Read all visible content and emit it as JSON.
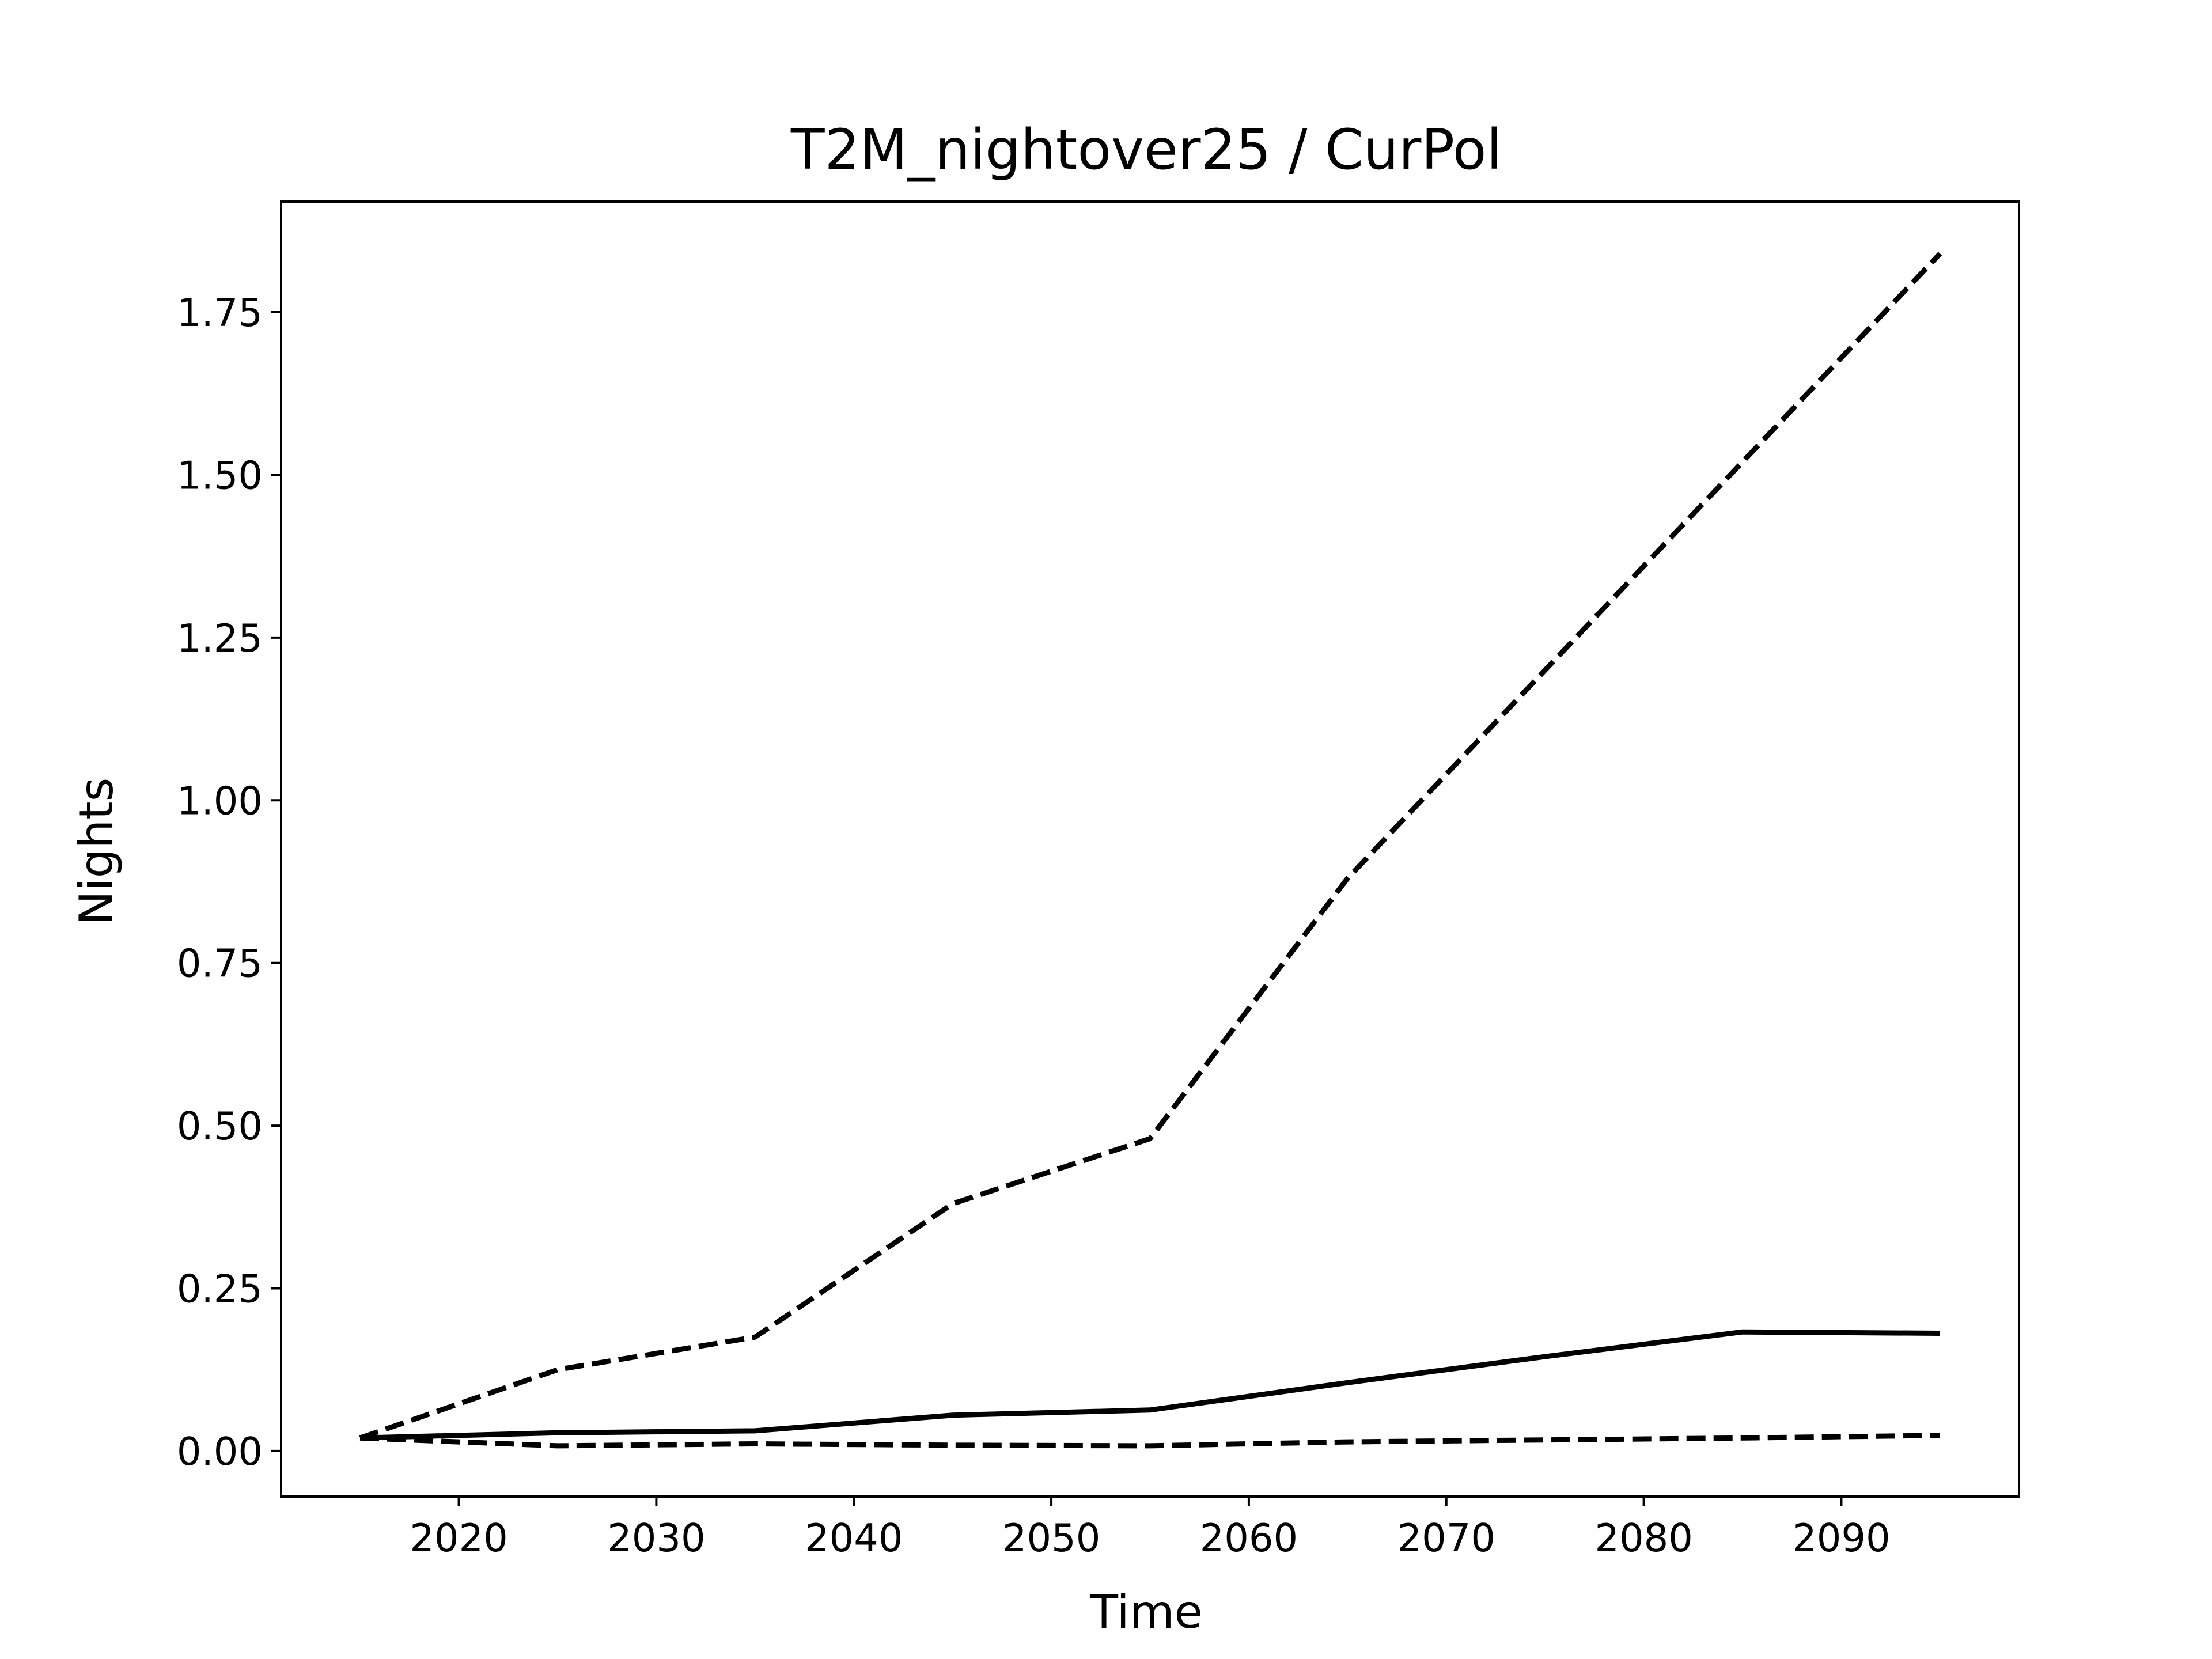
{
  "chart_data": {
    "type": "line",
    "title": "T2M_nightover25 / CurPol",
    "xlabel": "Time",
    "ylabel": "Nights",
    "xlim": [
      2011,
      2099
    ],
    "ylim": [
      -0.07,
      1.92
    ],
    "xticks": [
      2020,
      2030,
      2040,
      2050,
      2060,
      2070,
      2080,
      2090
    ],
    "xtick_labels": [
      "2020",
      "2030",
      "2040",
      "2050",
      "2060",
      "2070",
      "2080",
      "2090"
    ],
    "yticks": [
      0.0,
      0.25,
      0.5,
      0.75,
      1.0,
      1.25,
      1.5,
      1.75
    ],
    "ytick_labels": [
      "0.00",
      "0.25",
      "0.50",
      "0.75",
      "1.00",
      "1.25",
      "1.50",
      "1.75"
    ],
    "grid": false,
    "legend": "none",
    "series": [
      {
        "style": "dashed",
        "color": "#000000",
        "x": [
          2015,
          2025,
          2035,
          2045,
          2055,
          2065,
          2075,
          2085,
          2095
        ],
        "y": [
          0.02,
          0.125,
          0.175,
          0.38,
          0.48,
          0.88,
          1.2,
          1.52,
          1.84
        ]
      },
      {
        "style": "solid",
        "color": "#000000",
        "x": [
          2015,
          2025,
          2035,
          2045,
          2055,
          2065,
          2075,
          2085,
          2095
        ],
        "y": [
          0.02,
          0.028,
          0.031,
          0.055,
          0.063,
          0.105,
          0.145,
          0.183,
          0.181
        ]
      },
      {
        "style": "dashed",
        "color": "#000000",
        "x": [
          2015,
          2025,
          2035,
          2045,
          2055,
          2065,
          2075,
          2085,
          2095
        ],
        "y": [
          0.02,
          0.008,
          0.011,
          0.009,
          0.008,
          0.014,
          0.017,
          0.02,
          0.024
        ]
      }
    ]
  }
}
